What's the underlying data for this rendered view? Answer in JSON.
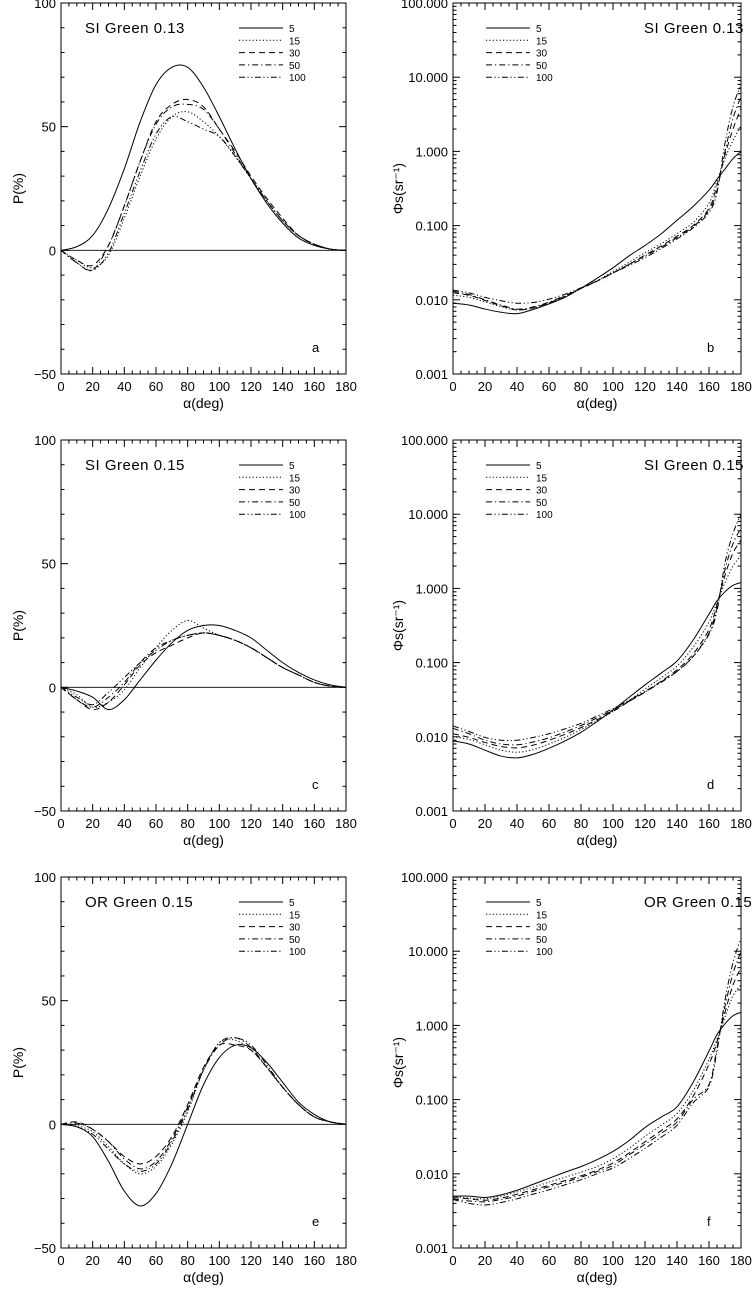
{
  "chart_data": [
    {
      "id": "a",
      "type": "line",
      "scale": "linear",
      "title": "SI Green 0.13",
      "panel_label": "a",
      "xlabel": "α(deg)",
      "ylabel": "P(%)",
      "xlim": [
        0,
        180
      ],
      "ylim": [
        -50,
        100
      ],
      "xticks": [
        "0",
        "20",
        "40",
        "60",
        "80",
        "100",
        "120",
        "140",
        "160",
        "180"
      ],
      "yticks": [
        "−50",
        "0",
        "50",
        "100"
      ],
      "x": [
        0,
        10,
        20,
        30,
        40,
        50,
        60,
        70,
        80,
        90,
        100,
        110,
        120,
        130,
        140,
        150,
        160,
        170,
        180
      ],
      "series": [
        {
          "name": "5",
          "dash": "solid",
          "values": [
            0,
            1.5,
            6,
            17,
            33,
            52,
            67,
            74,
            74,
            66,
            54,
            41,
            29,
            19,
            11,
            5,
            2,
            0.5,
            0
          ]
        },
        {
          "name": "15",
          "dash": "dotted",
          "values": [
            0,
            -4,
            -7,
            -2,
            13,
            30,
            45,
            54,
            56,
            52,
            46,
            38,
            29,
            20,
            12,
            6,
            2.5,
            0.5,
            0
          ]
        },
        {
          "name": "30",
          "dash": "dashed",
          "values": [
            0,
            -4,
            -6,
            2,
            18,
            36,
            52,
            59,
            61,
            58,
            49,
            40,
            30,
            21,
            13,
            6,
            2.5,
            0.5,
            0
          ]
        },
        {
          "name": "50",
          "dash": "dashdot",
          "values": [
            0,
            -5,
            -8,
            2,
            18,
            36,
            51,
            58,
            59,
            57,
            49,
            39,
            29,
            20,
            12,
            6,
            2.5,
            0.5,
            0
          ]
        },
        {
          "name": "100",
          "dash": "dashdotdot",
          "values": [
            0,
            -5,
            -8,
            -1,
            15,
            32,
            47,
            54,
            52,
            49,
            46,
            38,
            29,
            20,
            12,
            6,
            2.5,
            0.5,
            0
          ]
        }
      ]
    },
    {
      "id": "b",
      "type": "line",
      "scale": "log",
      "title": "SI Green 0.13",
      "panel_label": "b",
      "xlabel": "α(deg)",
      "ylabel": "Φs(sr⁻¹)",
      "xlim": [
        0,
        180
      ],
      "ylim": [
        0.001,
        100
      ],
      "xticks": [
        "0",
        "20",
        "40",
        "60",
        "80",
        "100",
        "120",
        "140",
        "160",
        "180"
      ],
      "yticks": [
        "0.001",
        "0.010",
        "0.100",
        "1.000",
        "10.000",
        "100.000"
      ],
      "x": [
        0,
        10,
        20,
        30,
        40,
        50,
        60,
        70,
        80,
        90,
        100,
        110,
        120,
        130,
        140,
        150,
        160,
        165,
        170,
        175,
        180
      ],
      "series": [
        {
          "name": "5",
          "dash": "solid",
          "values": [
            0.009,
            0.0085,
            0.0075,
            0.0068,
            0.0065,
            0.0074,
            0.0088,
            0.0108,
            0.0143,
            0.0195,
            0.027,
            0.039,
            0.054,
            0.077,
            0.118,
            0.18,
            0.3,
            0.42,
            0.58,
            0.8,
            1.0
          ]
        },
        {
          "name": "15",
          "dash": "dotted",
          "values": [
            0.0115,
            0.0108,
            0.0094,
            0.0081,
            0.0073,
            0.0077,
            0.009,
            0.0112,
            0.0142,
            0.018,
            0.024,
            0.032,
            0.043,
            0.057,
            0.078,
            0.11,
            0.2,
            0.4,
            0.8,
            1.4,
            2.2
          ]
        },
        {
          "name": "30",
          "dash": "dashed",
          "values": [
            0.0125,
            0.0115,
            0.0098,
            0.0083,
            0.0073,
            0.0078,
            0.0091,
            0.0112,
            0.0142,
            0.0178,
            0.023,
            0.03,
            0.04,
            0.053,
            0.072,
            0.1,
            0.17,
            0.35,
            0.9,
            2.0,
            3.8
          ]
        },
        {
          "name": "50",
          "dash": "dashdot",
          "values": [
            0.013,
            0.0118,
            0.01,
            0.0085,
            0.0075,
            0.008,
            0.0093,
            0.0114,
            0.0143,
            0.018,
            0.023,
            0.03,
            0.039,
            0.051,
            0.069,
            0.096,
            0.16,
            0.3,
            1.0,
            2.8,
            5.5
          ]
        },
        {
          "name": "100",
          "dash": "dashdotdot",
          "values": [
            0.0135,
            0.0124,
            0.0108,
            0.0097,
            0.009,
            0.0092,
            0.0102,
            0.0119,
            0.0145,
            0.018,
            0.023,
            0.029,
            0.037,
            0.049,
            0.066,
            0.093,
            0.15,
            0.28,
            1.3,
            4.0,
            8.0
          ]
        }
      ]
    },
    {
      "id": "c",
      "type": "line",
      "scale": "linear",
      "title": "SI Green 0.15",
      "panel_label": "c",
      "xlabel": "α(deg)",
      "ylabel": "P(%)",
      "xlim": [
        0,
        180
      ],
      "ylim": [
        -50,
        100
      ],
      "xticks": [
        "0",
        "20",
        "40",
        "60",
        "80",
        "100",
        "120",
        "140",
        "160",
        "180"
      ],
      "yticks": [
        "−50",
        "0",
        "50",
        "100"
      ],
      "x": [
        0,
        10,
        20,
        30,
        40,
        50,
        60,
        70,
        80,
        90,
        100,
        110,
        120,
        130,
        140,
        150,
        160,
        170,
        180
      ],
      "series": [
        {
          "name": "5",
          "dash": "solid",
          "values": [
            0,
            -1.5,
            -4,
            -9,
            -5,
            3,
            11,
            18,
            23,
            25,
            25,
            23,
            20,
            15,
            10,
            6,
            3,
            1,
            0
          ]
        },
        {
          "name": "15",
          "dash": "dotted",
          "values": [
            0,
            -3,
            -8,
            -6,
            -1,
            8,
            16,
            23,
            27,
            24,
            21,
            19,
            16,
            12,
            8,
            5,
            2,
            0.5,
            0
          ]
        },
        {
          "name": "30",
          "dash": "dashed",
          "values": [
            0,
            -5,
            -9,
            -6,
            1,
            9,
            14,
            17,
            20,
            22,
            21,
            19,
            16,
            12,
            8,
            5,
            2,
            0.5,
            0
          ]
        },
        {
          "name": "50",
          "dash": "dashdot",
          "values": [
            0,
            -5,
            -8,
            -4,
            2,
            10,
            16,
            19,
            21,
            22,
            21,
            19,
            16,
            12,
            8,
            5,
            2,
            0.5,
            0
          ]
        },
        {
          "name": "100",
          "dash": "dashdotdot",
          "values": [
            0,
            -4,
            -7,
            -2,
            4,
            10,
            15,
            19,
            21,
            22,
            21,
            19,
            16,
            12,
            8,
            5,
            2,
            0.5,
            0
          ]
        }
      ]
    },
    {
      "id": "d",
      "type": "line",
      "scale": "log",
      "title": "SI Green 0.15",
      "panel_label": "d",
      "xlabel": "α(deg)",
      "ylabel": "Φs(sr⁻¹)",
      "xlim": [
        0,
        180
      ],
      "ylim": [
        0.001,
        100
      ],
      "xticks": [
        "0",
        "20",
        "40",
        "60",
        "80",
        "100",
        "120",
        "140",
        "160",
        "180"
      ],
      "yticks": [
        "0.001",
        "0.010",
        "0.100",
        "1.000",
        "10.000",
        "100.000"
      ],
      "x": [
        0,
        10,
        20,
        30,
        40,
        50,
        60,
        70,
        80,
        90,
        100,
        110,
        120,
        130,
        140,
        150,
        160,
        165,
        170,
        175,
        180
      ],
      "series": [
        {
          "name": "5",
          "dash": "solid",
          "values": [
            0.0088,
            0.008,
            0.0066,
            0.0055,
            0.0052,
            0.0058,
            0.007,
            0.0088,
            0.0115,
            0.016,
            0.023,
            0.034,
            0.05,
            0.072,
            0.105,
            0.2,
            0.45,
            0.68,
            0.9,
            1.1,
            1.2
          ]
        },
        {
          "name": "15",
          "dash": "dotted",
          "values": [
            0.01,
            0.0092,
            0.0078,
            0.0066,
            0.0062,
            0.0067,
            0.008,
            0.0098,
            0.0125,
            0.0165,
            0.022,
            0.031,
            0.044,
            0.062,
            0.09,
            0.16,
            0.35,
            0.65,
            1.2,
            2.0,
            2.8
          ]
        },
        {
          "name": "30",
          "dash": "dashed",
          "values": [
            0.011,
            0.0098,
            0.0084,
            0.0074,
            0.0071,
            0.0077,
            0.009,
            0.0108,
            0.0133,
            0.017,
            0.022,
            0.03,
            0.04,
            0.056,
            0.08,
            0.13,
            0.28,
            0.6,
            1.5,
            3.0,
            4.5
          ]
        },
        {
          "name": "50",
          "dash": "dashdot",
          "values": [
            0.013,
            0.011,
            0.009,
            0.008,
            0.0078,
            0.0085,
            0.0097,
            0.0116,
            0.0142,
            0.018,
            0.023,
            0.03,
            0.04,
            0.054,
            0.076,
            0.12,
            0.25,
            0.55,
            1.8,
            4.0,
            6.5
          ]
        },
        {
          "name": "100",
          "dash": "dashdotdot",
          "values": [
            0.014,
            0.0118,
            0.0098,
            0.009,
            0.009,
            0.0098,
            0.011,
            0.0128,
            0.0152,
            0.019,
            0.024,
            0.031,
            0.041,
            0.055,
            0.076,
            0.12,
            0.24,
            0.5,
            2.2,
            5.5,
            10.0
          ]
        }
      ]
    },
    {
      "id": "e",
      "type": "line",
      "scale": "linear",
      "title": "OR Green 0.15",
      "panel_label": "e",
      "xlabel": "α(deg)",
      "ylabel": "P(%)",
      "xlim": [
        0,
        180
      ],
      "ylim": [
        -50,
        100
      ],
      "xticks": [
        "0",
        "20",
        "40",
        "60",
        "80",
        "100",
        "120",
        "140",
        "160",
        "180"
      ],
      "yticks": [
        "−50",
        "0",
        "50",
        "100"
      ],
      "x": [
        0,
        10,
        20,
        30,
        40,
        50,
        60,
        70,
        80,
        90,
        100,
        110,
        120,
        130,
        140,
        150,
        160,
        170,
        180
      ],
      "series": [
        {
          "name": "5",
          "dash": "solid",
          "values": [
            0,
            -1,
            -5,
            -15,
            -27,
            -33,
            -28,
            -16,
            0,
            16,
            27,
            32,
            31,
            25,
            17,
            9,
            4,
            1,
            0
          ]
        },
        {
          "name": "15",
          "dash": "dotted",
          "values": [
            0,
            -0.5,
            -3,
            -9,
            -16,
            -20,
            -17,
            -8,
            5,
            22,
            33,
            34,
            30,
            23,
            15,
            8,
            3,
            1,
            0
          ]
        },
        {
          "name": "30",
          "dash": "dashed",
          "values": [
            0,
            1,
            -2,
            -7,
            -13,
            -16,
            -13,
            -5,
            8,
            23,
            32,
            32,
            30,
            23,
            15,
            8,
            3,
            1,
            0
          ]
        },
        {
          "name": "50",
          "dash": "dashdot",
          "values": [
            0,
            0.5,
            -2,
            -7,
            -14,
            -18,
            -15,
            -6,
            7,
            22,
            32,
            35,
            31,
            23,
            15,
            8,
            3,
            1,
            0
          ]
        },
        {
          "name": "100",
          "dash": "dashdotdot",
          "values": [
            0,
            -1,
            -4,
            -10,
            -16,
            -19,
            -16,
            -7,
            6,
            22,
            33,
            35,
            32,
            24,
            15,
            8,
            3,
            1,
            0
          ]
        }
      ]
    },
    {
      "id": "f",
      "type": "line",
      "scale": "log",
      "title": "OR Green 0.15",
      "panel_label": "f",
      "xlabel": "α(deg)",
      "ylabel": "Φs(sr⁻¹)",
      "xlim": [
        0,
        180
      ],
      "ylim": [
        0.001,
        100
      ],
      "xticks": [
        "0",
        "20",
        "40",
        "60",
        "80",
        "100",
        "120",
        "140",
        "160",
        "180"
      ],
      "yticks": [
        "0.001",
        "0.010",
        "0.100",
        "1.000",
        "10.000",
        "100.000"
      ],
      "x": [
        0,
        10,
        20,
        30,
        40,
        50,
        60,
        70,
        80,
        90,
        100,
        110,
        120,
        130,
        140,
        150,
        160,
        165,
        170,
        175,
        180
      ],
      "series": [
        {
          "name": "5",
          "dash": "solid",
          "values": [
            0.005,
            0.005,
            0.0048,
            0.0052,
            0.006,
            0.0072,
            0.0087,
            0.0105,
            0.0125,
            0.0155,
            0.02,
            0.028,
            0.042,
            0.058,
            0.08,
            0.17,
            0.45,
            0.75,
            1.05,
            1.35,
            1.5
          ]
        },
        {
          "name": "15",
          "dash": "dotted",
          "values": [
            0.005,
            0.0047,
            0.0046,
            0.005,
            0.0057,
            0.0066,
            0.0077,
            0.009,
            0.0105,
            0.0125,
            0.016,
            0.022,
            0.032,
            0.045,
            0.065,
            0.13,
            0.35,
            0.65,
            1.3,
            2.5,
            3.5
          ]
        },
        {
          "name": "30",
          "dash": "dashed",
          "values": [
            0.0048,
            0.0046,
            0.0044,
            0.0047,
            0.0053,
            0.0061,
            0.007,
            0.0081,
            0.0094,
            0.0112,
            0.014,
            0.019,
            0.027,
            0.038,
            0.055,
            0.11,
            0.3,
            0.6,
            1.5,
            3.5,
            6.0
          ]
        },
        {
          "name": "50",
          "dash": "dashdot",
          "values": [
            0.0046,
            0.0043,
            0.0042,
            0.0045,
            0.005,
            0.0058,
            0.0067,
            0.0077,
            0.009,
            0.0107,
            0.013,
            0.018,
            0.025,
            0.035,
            0.05,
            0.1,
            0.16,
            0.5,
            1.8,
            5.0,
            10.0
          ]
        },
        {
          "name": "100",
          "dash": "dashdotdot",
          "values": [
            0.0045,
            0.004,
            0.0038,
            0.0041,
            0.0046,
            0.0053,
            0.0061,
            0.0071,
            0.0083,
            0.01,
            0.012,
            0.016,
            0.022,
            0.031,
            0.045,
            0.09,
            0.15,
            0.45,
            2.2,
            7.0,
            15.0
          ]
        }
      ]
    }
  ]
}
